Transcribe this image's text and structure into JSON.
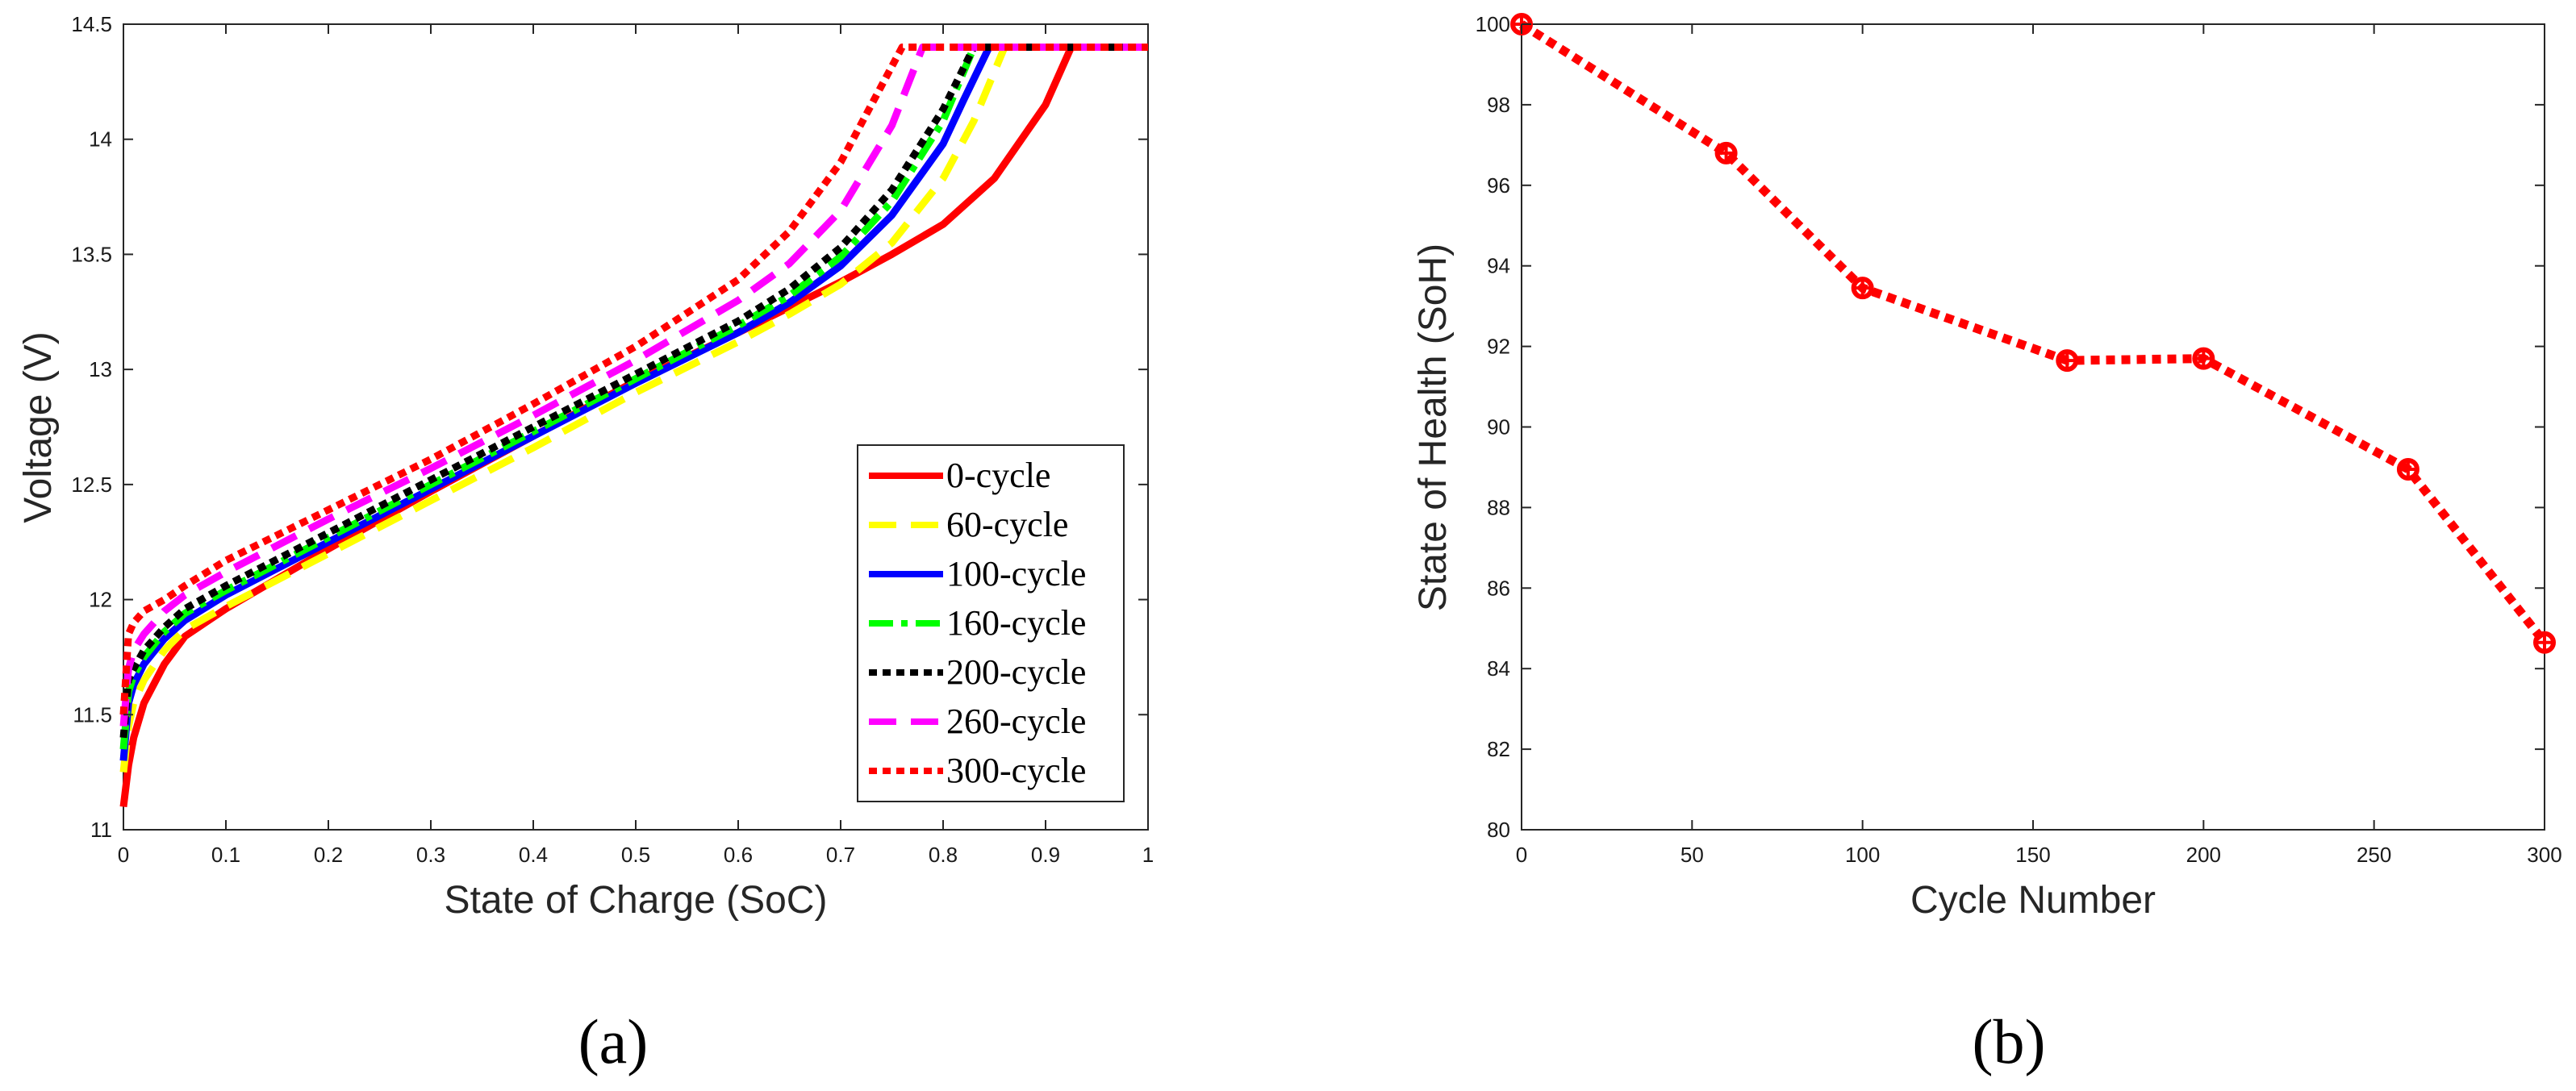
{
  "chart_data": [
    {
      "type": "line",
      "panel_label": "(a)",
      "xlabel": "State of Charge (SoC)",
      "ylabel": "Voltage (V)",
      "xlim": [
        0,
        1
      ],
      "ylim": [
        11,
        14.5
      ],
      "xticks": [
        0,
        0.1,
        0.2,
        0.3,
        0.4,
        0.5,
        0.6,
        0.7,
        0.8,
        0.9,
        1
      ],
      "xtick_labels": [
        "0",
        "0.1",
        "0.2",
        "0.3",
        "0.4",
        "0.5",
        "0.6",
        "0.7",
        "0.8",
        "0.9",
        "1"
      ],
      "yticks": [
        11,
        11.5,
        12,
        12.5,
        13,
        13.5,
        14,
        14.5
      ],
      "ytick_labels": [
        "11",
        "11.5",
        "12",
        "12.5",
        "13",
        "13.5",
        "14",
        "14.5"
      ],
      "legend_position": "bottom-right",
      "series": [
        {
          "name": "0-cycle",
          "color": "#ff0000",
          "style": "solid",
          "x": [
            0,
            0.005,
            0.01,
            0.02,
            0.04,
            0.06,
            0.1,
            0.2,
            0.3,
            0.4,
            0.5,
            0.6,
            0.65,
            0.7,
            0.75,
            0.8,
            0.85,
            0.9,
            0.925,
            0.95,
            1.0
          ],
          "y": [
            11.1,
            11.28,
            11.4,
            11.55,
            11.72,
            11.84,
            11.96,
            12.22,
            12.47,
            12.71,
            12.95,
            13.16,
            13.27,
            13.38,
            13.5,
            13.63,
            13.83,
            14.15,
            14.4,
            14.4,
            14.4
          ]
        },
        {
          "name": "60-cycle",
          "color": "#ffff00",
          "style": "dashed",
          "x": [
            0,
            0.005,
            0.01,
            0.02,
            0.04,
            0.06,
            0.1,
            0.2,
            0.3,
            0.4,
            0.5,
            0.6,
            0.65,
            0.7,
            0.75,
            0.8,
            0.83,
            0.86,
            0.9,
            1.0
          ],
          "y": [
            11.25,
            11.45,
            11.55,
            11.65,
            11.78,
            11.87,
            11.97,
            12.2,
            12.43,
            12.66,
            12.9,
            13.12,
            13.24,
            13.37,
            13.55,
            13.83,
            14.08,
            14.4,
            14.4,
            14.4
          ]
        },
        {
          "name": "100-cycle",
          "color": "#0000ff",
          "style": "solid",
          "x": [
            0,
            0.005,
            0.01,
            0.02,
            0.04,
            0.06,
            0.1,
            0.2,
            0.3,
            0.4,
            0.5,
            0.6,
            0.65,
            0.7,
            0.75,
            0.8,
            0.82,
            0.845,
            0.9,
            1.0
          ],
          "y": [
            11.3,
            11.55,
            11.63,
            11.72,
            11.83,
            11.91,
            12.02,
            12.25,
            12.48,
            12.71,
            12.94,
            13.16,
            13.29,
            13.45,
            13.67,
            13.98,
            14.17,
            14.4,
            14.4,
            14.4
          ]
        },
        {
          "name": "160-cycle",
          "color": "#00ff00",
          "style": "dashdot",
          "x": [
            0,
            0.005,
            0.01,
            0.02,
            0.04,
            0.06,
            0.1,
            0.2,
            0.3,
            0.4,
            0.5,
            0.6,
            0.65,
            0.7,
            0.75,
            0.8,
            0.83,
            0.9,
            1.0
          ],
          "y": [
            11.35,
            11.6,
            11.67,
            11.75,
            11.86,
            11.94,
            12.04,
            12.27,
            12.5,
            12.73,
            12.96,
            13.19,
            13.32,
            13.49,
            13.73,
            14.08,
            14.4,
            14.4,
            14.4
          ]
        },
        {
          "name": "200-cycle",
          "color": "#000000",
          "style": "dotted",
          "x": [
            0,
            0.005,
            0.01,
            0.02,
            0.04,
            0.06,
            0.1,
            0.2,
            0.3,
            0.4,
            0.5,
            0.6,
            0.65,
            0.7,
            0.75,
            0.8,
            0.83,
            0.9,
            1.0
          ],
          "y": [
            11.4,
            11.65,
            11.7,
            11.78,
            11.88,
            11.96,
            12.06,
            12.29,
            12.52,
            12.75,
            12.98,
            13.21,
            13.35,
            13.53,
            13.78,
            14.13,
            14.4,
            14.4,
            14.4
          ]
        },
        {
          "name": "260-cycle",
          "color": "#ff00ff",
          "style": "dashed",
          "x": [
            0,
            0.005,
            0.01,
            0.02,
            0.04,
            0.06,
            0.1,
            0.2,
            0.3,
            0.4,
            0.5,
            0.6,
            0.65,
            0.7,
            0.75,
            0.78,
            0.8,
            0.9,
            1.0
          ],
          "y": [
            11.45,
            11.7,
            11.78,
            11.85,
            11.95,
            12.02,
            12.12,
            12.35,
            12.57,
            12.8,
            13.04,
            13.3,
            13.46,
            13.69,
            14.06,
            14.4,
            14.4,
            14.4,
            14.4
          ]
        },
        {
          "name": "300-cycle",
          "color": "#ff0000",
          "style": "dotted",
          "x": [
            0,
            0.005,
            0.01,
            0.02,
            0.04,
            0.06,
            0.1,
            0.2,
            0.3,
            0.4,
            0.5,
            0.6,
            0.65,
            0.7,
            0.73,
            0.76,
            0.8,
            0.9,
            1.0
          ],
          "y": [
            11.5,
            11.85,
            11.9,
            11.95,
            12.0,
            12.06,
            12.17,
            12.39,
            12.61,
            12.85,
            13.1,
            13.39,
            13.6,
            13.9,
            14.15,
            14.4,
            14.4,
            14.4,
            14.4
          ]
        }
      ]
    },
    {
      "type": "line",
      "panel_label": "(b)",
      "xlabel": "Cycle Number",
      "ylabel": "State of Health (SoH)",
      "xlim": [
        0,
        300
      ],
      "ylim": [
        80,
        100
      ],
      "xticks": [
        0,
        50,
        100,
        150,
        200,
        250,
        300
      ],
      "xtick_labels": [
        "0",
        "50",
        "100",
        "150",
        "200",
        "250",
        "300"
      ],
      "yticks": [
        80,
        82,
        84,
        86,
        88,
        90,
        92,
        94,
        96,
        98,
        100
      ],
      "ytick_labels": [
        "80",
        "82",
        "84",
        "86",
        "88",
        "90",
        "92",
        "94",
        "96",
        "98",
        "100"
      ],
      "series": [
        {
          "name": "SoH",
          "color": "#ff0000",
          "style": "dotted-marker",
          "x": [
            0,
            60,
            100,
            160,
            200,
            260,
            300
          ],
          "y": [
            100,
            96.8,
            93.45,
            91.65,
            91.7,
            88.95,
            84.65
          ]
        }
      ]
    }
  ]
}
